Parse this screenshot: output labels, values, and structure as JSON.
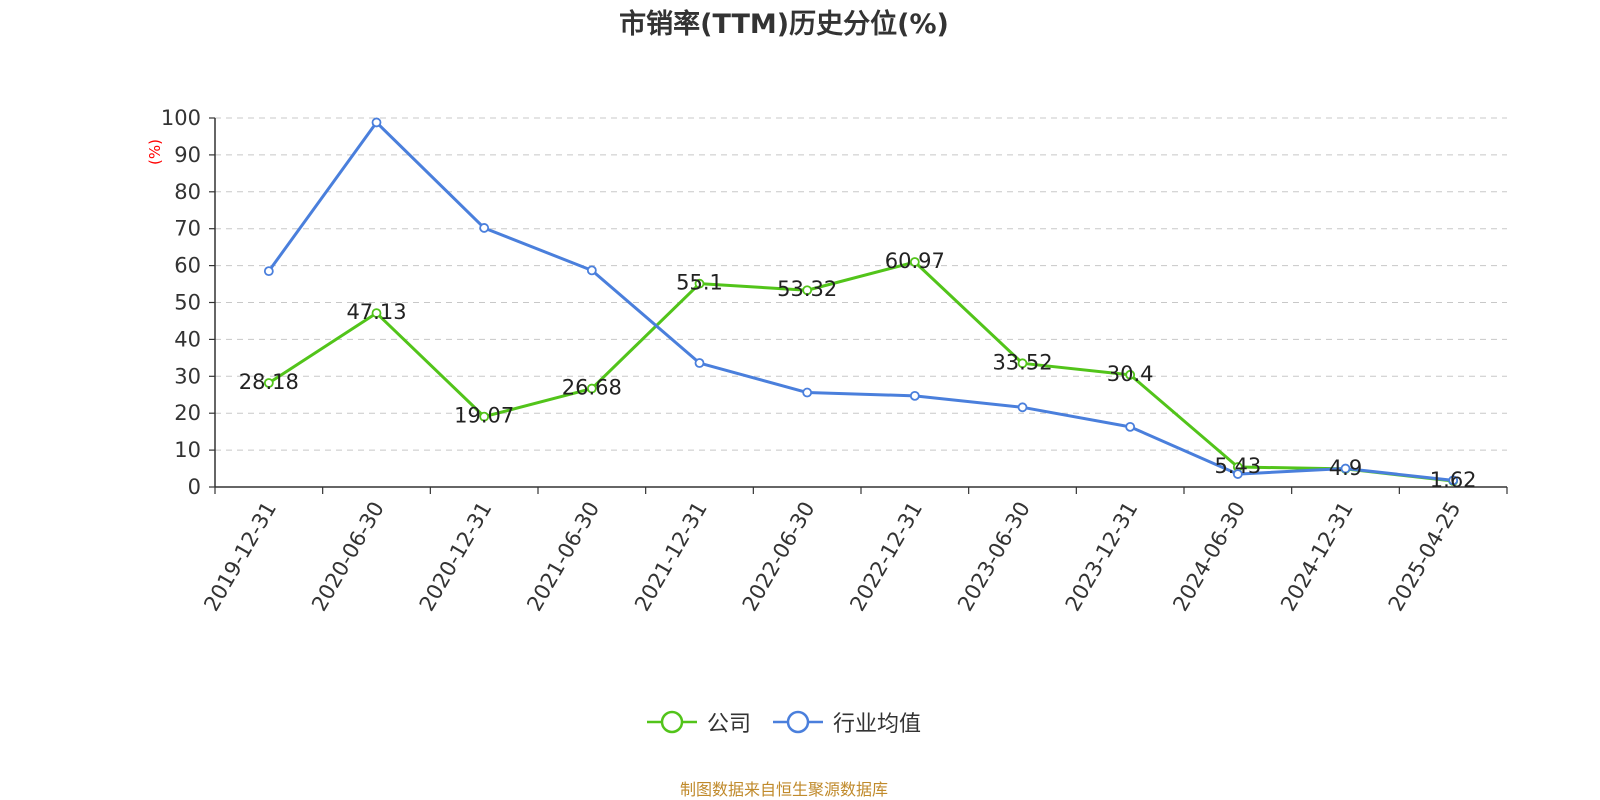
{
  "chart_data": {
    "type": "line",
    "title": "市销率(TTM)历史分位(%)",
    "ylabel": "(%)",
    "ylim": [
      0,
      100
    ],
    "yticks": [
      "0",
      "10",
      "20",
      "30",
      "40",
      "50",
      "60",
      "70",
      "80",
      "90",
      "100"
    ],
    "categories": [
      "2019-12-31",
      "2020-06-30",
      "2020-12-31",
      "2021-06-30",
      "2021-12-31",
      "2022-06-30",
      "2022-12-31",
      "2023-06-30",
      "2023-12-31",
      "2024-06-30",
      "2024-12-31",
      "2025-04-25"
    ],
    "series": [
      {
        "name": "公司",
        "color": "#52c41a",
        "values": [
          28.18,
          47.13,
          19.07,
          26.68,
          55.1,
          53.32,
          60.97,
          33.52,
          30.4,
          5.43,
          4.9,
          1.62
        ],
        "labels": [
          "28.18",
          "47.13",
          "19.07",
          "26.68",
          "55.1",
          "53.32",
          "60.97",
          "33.52",
          "30.4",
          "5.43",
          "4.9",
          "1.62"
        ]
      },
      {
        "name": "行业均值",
        "color": "#4a7fdc",
        "values": [
          58.5,
          98.8,
          70.2,
          58.7,
          33.6,
          25.6,
          24.7,
          21.6,
          16.3,
          3.5,
          5.0,
          1.8
        ]
      }
    ],
    "grid": true,
    "legend_position": "bottom-center",
    "source": "制图数据来自恒生聚源数据库"
  }
}
